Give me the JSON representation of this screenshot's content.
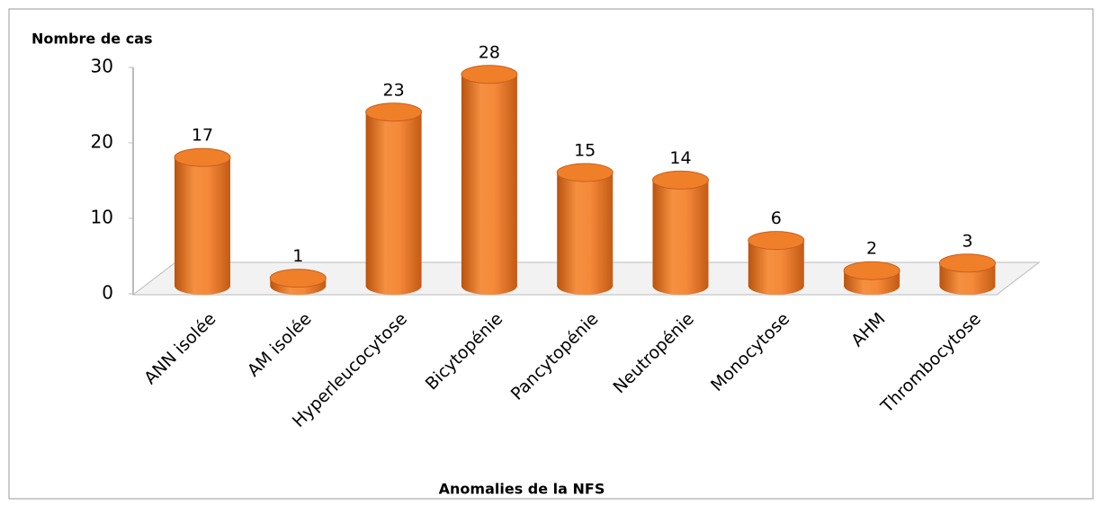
{
  "chart_data": {
    "type": "bar",
    "y_axis_label": "Nombre de cas",
    "x_axis_label": "Anomalies de la NFS",
    "categories": [
      "ANN isolée",
      "AM isolée",
      "Hyperleucocytose",
      "Bicytopénie",
      "Pancytopénie",
      "Neutropénie",
      "Monocytose",
      "AHM",
      "Thrombocytose"
    ],
    "values": [
      17,
      1,
      23,
      28,
      15,
      14,
      6,
      2,
      3
    ],
    "color": "#f07f2a",
    "ylim": [
      0,
      30
    ],
    "yticks": [
      0,
      10,
      20,
      30
    ],
    "grid": false
  }
}
